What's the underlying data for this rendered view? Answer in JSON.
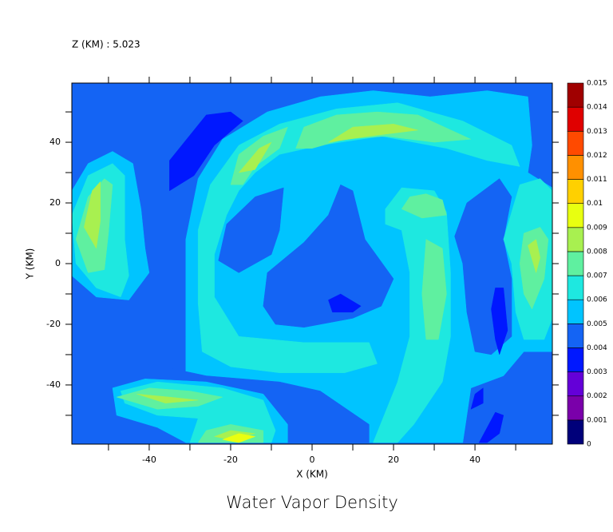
{
  "chart_data": {
    "type": "contour",
    "title": "Water Vapor Density",
    "annotation": "Z (KM) : 5.023",
    "xlabel": "X (KM)",
    "ylabel": "Y (KM)",
    "xlim": [
      -59,
      59
    ],
    "ylim": [
      -59.5,
      59.5
    ],
    "xticks": [
      -40,
      -20,
      0,
      20,
      40
    ],
    "xminor": [
      -50,
      -30,
      -10,
      10,
      30,
      50
    ],
    "yticks": [
      -40,
      -20,
      0,
      20,
      40
    ],
    "yminor": [
      -50,
      -30,
      -10,
      10,
      30,
      50
    ],
    "levels": [
      0,
      0.001,
      0.002,
      0.003,
      0.004,
      0.005,
      0.006,
      0.007,
      0.008,
      0.009,
      0.01,
      0.011,
      0.012,
      0.013,
      0.014,
      0.015
    ],
    "colors": [
      "#00007a",
      "#7a00aa",
      "#6400d8",
      "#0018ff",
      "#1464f4",
      "#00c4ff",
      "#1ee8e0",
      "#5ff0a0",
      "#a8f050",
      "#e8ff10",
      "#ffd000",
      "#ff9000",
      "#ff4a00",
      "#e00000",
      "#a00000"
    ],
    "background_level": 0.004,
    "regions": [
      {
        "level": 0.005,
        "points": [
          [
            -31,
            -59
          ],
          [
            -31,
            -24
          ],
          [
            -31,
            8
          ],
          [
            -28,
            28
          ],
          [
            -22,
            41
          ],
          [
            -11,
            50
          ],
          [
            2,
            55
          ],
          [
            15,
            57
          ],
          [
            29,
            55
          ],
          [
            43,
            57
          ],
          [
            53,
            55
          ],
          [
            54,
            39
          ],
          [
            53,
            30
          ],
          [
            59,
            25
          ],
          [
            59,
            -29
          ],
          [
            52,
            -29
          ],
          [
            47,
            -37
          ],
          [
            39,
            -41
          ],
          [
            37,
            -59
          ]
        ]
      },
      {
        "level": 0.005,
        "points": [
          [
            -59,
            24
          ],
          [
            -55,
            33
          ],
          [
            -49,
            37
          ],
          [
            -44,
            33
          ],
          [
            -42,
            18
          ],
          [
            -41,
            5
          ],
          [
            -40,
            -3
          ],
          [
            -45,
            -12
          ],
          [
            -53,
            -11
          ],
          [
            -59,
            -4
          ]
        ]
      },
      {
        "level": 0.004,
        "points": [
          [
            -23,
            1
          ],
          [
            -21,
            13
          ],
          [
            -14,
            22
          ],
          [
            -7,
            25
          ],
          [
            -8,
            11
          ],
          [
            -10,
            3
          ],
          [
            -18,
            -3
          ]
        ]
      },
      {
        "level": 0.004,
        "points": [
          [
            -12,
            -14
          ],
          [
            -11,
            -3
          ],
          [
            -2,
            7
          ],
          [
            4,
            16
          ],
          [
            7,
            26
          ],
          [
            10,
            24
          ],
          [
            13,
            8
          ],
          [
            20,
            -5
          ],
          [
            17,
            -14
          ],
          [
            10,
            -18
          ],
          [
            -2,
            -21
          ],
          [
            -9,
            -20
          ]
        ]
      },
      {
        "level": 0.004,
        "points": [
          [
            35,
            9
          ],
          [
            38,
            20
          ],
          [
            46,
            28
          ],
          [
            49,
            22
          ],
          [
            47,
            8
          ],
          [
            49,
            -5
          ],
          [
            49,
            -24
          ],
          [
            44,
            -30
          ],
          [
            40,
            -29
          ],
          [
            38,
            -16
          ],
          [
            37,
            0
          ]
        ]
      },
      {
        "level": 0.004,
        "points": [
          [
            -40,
            -33
          ],
          [
            -26,
            -37
          ],
          [
            -8,
            -39
          ],
          [
            2,
            -42
          ],
          [
            14,
            -53
          ],
          [
            14,
            -59
          ],
          [
            -6,
            -59
          ],
          [
            -12,
            -43
          ],
          [
            -26,
            -39
          ],
          [
            -41,
            -38
          ]
        ]
      },
      {
        "level": 0.005,
        "points": [
          [
            -49,
            -41
          ],
          [
            -41,
            -38
          ],
          [
            -26,
            -39
          ],
          [
            -12,
            -43
          ],
          [
            -6,
            -53
          ],
          [
            -6,
            -59
          ],
          [
            -31,
            -59
          ],
          [
            -38,
            -54
          ],
          [
            -48,
            -50
          ]
        ]
      },
      {
        "level": 0.006,
        "points": [
          [
            -27,
            -29
          ],
          [
            -28,
            -13
          ],
          [
            -28,
            11
          ],
          [
            -25,
            26
          ],
          [
            -18,
            39
          ],
          [
            -8,
            46
          ],
          [
            6,
            51
          ],
          [
            21,
            53
          ],
          [
            37,
            47
          ],
          [
            49,
            39
          ],
          [
            51,
            32
          ],
          [
            43,
            34
          ],
          [
            33,
            38
          ],
          [
            17,
            42
          ],
          [
            2,
            39
          ],
          [
            -8,
            36
          ],
          [
            -14,
            30
          ],
          [
            -18,
            24
          ],
          [
            -21,
            16
          ],
          [
            -24,
            3
          ],
          [
            -24,
            -11
          ],
          [
            -18,
            -24
          ],
          [
            -2,
            -26
          ],
          [
            14,
            -26
          ],
          [
            16,
            -33
          ],
          [
            8,
            -36
          ],
          [
            -8,
            -36
          ],
          [
            -20,
            -34
          ]
        ]
      },
      {
        "level": 0.006,
        "points": [
          [
            18,
            18
          ],
          [
            22,
            25
          ],
          [
            30,
            24
          ],
          [
            33,
            17
          ],
          [
            34,
            -3
          ],
          [
            34,
            -24
          ],
          [
            32,
            -39
          ],
          [
            25,
            -53
          ],
          [
            21,
            -59
          ],
          [
            15,
            -59
          ],
          [
            21,
            -39
          ],
          [
            24,
            -24
          ],
          [
            24,
            -3
          ],
          [
            22,
            11
          ],
          [
            18,
            13
          ]
        ]
      },
      {
        "level": 0.006,
        "points": [
          [
            51,
            26
          ],
          [
            56,
            28
          ],
          [
            59,
            24
          ],
          [
            59,
            -18
          ],
          [
            57,
            -25
          ],
          [
            52,
            -25
          ],
          [
            50,
            -16
          ],
          [
            49,
            0
          ],
          [
            47,
            8
          ],
          [
            49,
            17
          ]
        ]
      },
      {
        "level": 0.006,
        "points": [
          [
            -59,
            16
          ],
          [
            -55,
            29
          ],
          [
            -49,
            33
          ],
          [
            -46,
            29
          ],
          [
            -46,
            8
          ],
          [
            -45,
            -4
          ],
          [
            -47,
            -11
          ],
          [
            -53,
            -8
          ],
          [
            -58,
            0
          ]
        ]
      },
      {
        "level": 0.006,
        "points": [
          [
            -47,
            -42
          ],
          [
            -38,
            -39
          ],
          [
            -22,
            -41
          ],
          [
            -12,
            -45
          ],
          [
            -9,
            -55
          ],
          [
            -10,
            -59
          ],
          [
            -30,
            -59
          ],
          [
            -28,
            -51
          ],
          [
            -38,
            -50
          ],
          [
            -46,
            -46
          ]
        ]
      },
      {
        "level": 0.007,
        "points": [
          [
            -20,
            26
          ],
          [
            -18,
            36
          ],
          [
            -12,
            42
          ],
          [
            -6,
            45
          ],
          [
            -8,
            38
          ],
          [
            -14,
            32
          ],
          [
            -17,
            26
          ]
        ]
      },
      {
        "level": 0.007,
        "points": [
          [
            -4,
            38
          ],
          [
            -2,
            45
          ],
          [
            6,
            49
          ],
          [
            16,
            50
          ],
          [
            26,
            49
          ],
          [
            39,
            41
          ],
          [
            30,
            40
          ],
          [
            18,
            42
          ],
          [
            8,
            41
          ],
          [
            0,
            38
          ]
        ]
      },
      {
        "level": 0.007,
        "points": [
          [
            22,
            18
          ],
          [
            24,
            22
          ],
          [
            28,
            23
          ],
          [
            32,
            21
          ],
          [
            33,
            16
          ],
          [
            27,
            15
          ]
        ]
      },
      {
        "level": 0.007,
        "points": [
          [
            28,
            8
          ],
          [
            32,
            5
          ],
          [
            33,
            -10
          ],
          [
            31,
            -25
          ],
          [
            28,
            -25
          ],
          [
            27,
            -10
          ]
        ]
      },
      {
        "level": 0.007,
        "points": [
          [
            52,
            10
          ],
          [
            56,
            12
          ],
          [
            58,
            8
          ],
          [
            57,
            -5
          ],
          [
            54,
            -15
          ],
          [
            52,
            -10
          ],
          [
            51,
            0
          ]
        ]
      },
      {
        "level": 0.007,
        "points": [
          [
            -58,
            8
          ],
          [
            -55,
            22
          ],
          [
            -51,
            28
          ],
          [
            -49,
            26
          ],
          [
            -50,
            10
          ],
          [
            -51,
            -2
          ],
          [
            -55,
            -3
          ]
        ]
      },
      {
        "level": 0.007,
        "points": [
          [
            -48,
            -44
          ],
          [
            -40,
            -41
          ],
          [
            -30,
            -42
          ],
          [
            -22,
            -44
          ],
          [
            -28,
            -47
          ],
          [
            -38,
            -48
          ]
        ]
      },
      {
        "level": 0.007,
        "points": [
          [
            -28,
            -59
          ],
          [
            -26,
            -55
          ],
          [
            -20,
            -53
          ],
          [
            -12,
            -55
          ],
          [
            -12,
            -59
          ]
        ]
      },
      {
        "level": 0.008,
        "points": [
          [
            4,
            40
          ],
          [
            10,
            45
          ],
          [
            20,
            46
          ],
          [
            26,
            44
          ],
          [
            14,
            42
          ]
        ]
      },
      {
        "level": 0.008,
        "points": [
          [
            -18,
            30
          ],
          [
            -13,
            38
          ],
          [
            -10,
            40
          ],
          [
            -14,
            31
          ]
        ]
      },
      {
        "level": 0.008,
        "points": [
          [
            -56,
            12
          ],
          [
            -54,
            24
          ],
          [
            -52,
            27
          ],
          [
            -52,
            14
          ],
          [
            -53,
            5
          ]
        ]
      },
      {
        "level": 0.008,
        "points": [
          [
            53,
            6
          ],
          [
            55,
            8
          ],
          [
            56,
            2
          ],
          [
            55,
            -3
          ]
        ]
      },
      {
        "level": 0.008,
        "points": [
          [
            -43,
            -43
          ],
          [
            -35,
            -44
          ],
          [
            -28,
            -45
          ],
          [
            -36,
            -46
          ]
        ]
      },
      {
        "level": 0.008,
        "points": [
          [
            -24,
            -57
          ],
          [
            -20,
            -55
          ],
          [
            -14,
            -56
          ],
          [
            -20,
            -58
          ]
        ]
      },
      {
        "level": 0.009,
        "points": [
          [
            -22,
            -58
          ],
          [
            -18,
            -56
          ],
          [
            -14,
            -57
          ],
          [
            -18,
            -59
          ]
        ]
      },
      {
        "level": 0.003,
        "points": [
          [
            -35,
            34
          ],
          [
            -26,
            49
          ],
          [
            -20,
            50
          ],
          [
            -17,
            47
          ],
          [
            -24,
            39
          ],
          [
            -29,
            29
          ],
          [
            -35,
            24
          ]
        ]
      },
      {
        "level": 0.003,
        "points": [
          [
            4,
            -12
          ],
          [
            7,
            -10
          ],
          [
            12,
            -14
          ],
          [
            10,
            -16
          ],
          [
            5,
            -16
          ]
        ]
      },
      {
        "level": 0.003,
        "points": [
          [
            45,
            -8
          ],
          [
            47,
            -8
          ],
          [
            48,
            -22
          ],
          [
            46,
            -30
          ],
          [
            45,
            -25
          ],
          [
            44,
            -15
          ]
        ]
      },
      {
        "level": 0.003,
        "points": [
          [
            40,
            -43
          ],
          [
            42,
            -41
          ],
          [
            42,
            -46
          ],
          [
            39,
            -48
          ]
        ]
      },
      {
        "level": 0.003,
        "points": [
          [
            45,
            -49
          ],
          [
            47,
            -50
          ],
          [
            46,
            -56
          ],
          [
            43,
            -59
          ],
          [
            41,
            -59
          ]
        ]
      }
    ]
  }
}
